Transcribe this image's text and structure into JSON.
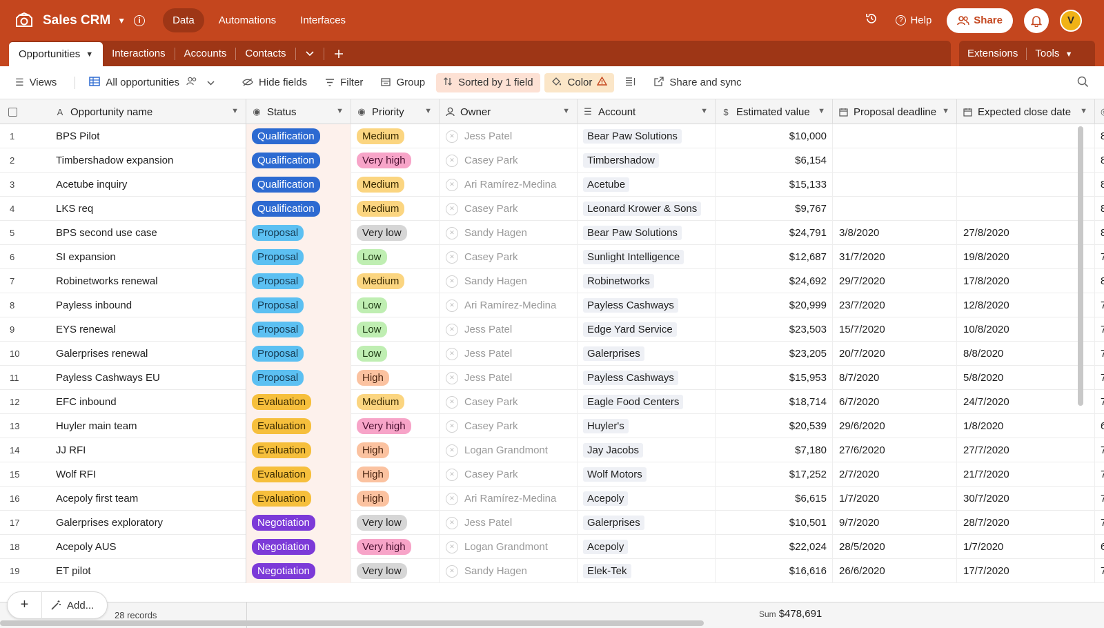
{
  "app": {
    "base_name": "Sales CRM",
    "nav": [
      "Data",
      "Automations",
      "Interfaces"
    ],
    "active_nav": 0,
    "help_label": "Help",
    "share_label": "Share",
    "avatar_initial": "V",
    "colors": {
      "brand": "#c4461e",
      "brand_dark": "#9e3616"
    }
  },
  "tabs": {
    "items": [
      "Opportunities",
      "Interactions",
      "Accounts",
      "Contacts"
    ],
    "right": [
      "Extensions",
      "Tools"
    ]
  },
  "toolbar": {
    "views": "Views",
    "view_name": "All opportunities",
    "hide_fields": "Hide fields",
    "filter": "Filter",
    "group": "Group",
    "sorted": "Sorted by 1 field",
    "color": "Color",
    "share_sync": "Share and sync"
  },
  "columns": [
    "Opportunity name",
    "Status",
    "Priority",
    "Owner",
    "Account",
    "Estimated value",
    "Proposal deadline",
    "Expected close date"
  ],
  "rows": [
    {
      "n": "1",
      "name": "BPS Pilot",
      "status": "Qualification",
      "priority": "Medium",
      "owner": "Jess Patel",
      "account": "Bear Paw Solutions",
      "value": "$10,000",
      "prop": "",
      "close": "",
      "tail": "8"
    },
    {
      "n": "2",
      "name": "Timbershadow expansion",
      "status": "Qualification",
      "priority": "Very high",
      "owner": "Casey Park",
      "account": "Timbershadow",
      "value": "$6,154",
      "prop": "",
      "close": "",
      "tail": "8"
    },
    {
      "n": "3",
      "name": "Acetube inquiry",
      "status": "Qualification",
      "priority": "Medium",
      "owner": "Ari Ramírez-Medina",
      "account": "Acetube",
      "value": "$15,133",
      "prop": "",
      "close": "",
      "tail": "8"
    },
    {
      "n": "4",
      "name": "LKS req",
      "status": "Qualification",
      "priority": "Medium",
      "owner": "Casey Park",
      "account": "Leonard Krower & Sons",
      "value": "$9,767",
      "prop": "",
      "close": "",
      "tail": "8"
    },
    {
      "n": "5",
      "name": "BPS second use case",
      "status": "Proposal",
      "priority": "Very low",
      "owner": "Sandy Hagen",
      "account": "Bear Paw Solutions",
      "value": "$24,791",
      "prop": "3/8/2020",
      "close": "27/8/2020",
      "tail": "8"
    },
    {
      "n": "6",
      "name": "SI expansion",
      "status": "Proposal",
      "priority": "Low",
      "owner": "Casey Park",
      "account": "Sunlight Intelligence",
      "value": "$12,687",
      "prop": "31/7/2020",
      "close": "19/8/2020",
      "tail": "7"
    },
    {
      "n": "7",
      "name": "Robinetworks renewal",
      "status": "Proposal",
      "priority": "Medium",
      "owner": "Sandy Hagen",
      "account": "Robinetworks",
      "value": "$24,692",
      "prop": "29/7/2020",
      "close": "17/8/2020",
      "tail": "8"
    },
    {
      "n": "8",
      "name": "Payless inbound",
      "status": "Proposal",
      "priority": "Low",
      "owner": "Ari Ramírez-Medina",
      "account": "Payless Cashways",
      "value": "$20,999",
      "prop": "23/7/2020",
      "close": "12/8/2020",
      "tail": "7"
    },
    {
      "n": "9",
      "name": "EYS renewal",
      "status": "Proposal",
      "priority": "Low",
      "owner": "Jess Patel",
      "account": "Edge Yard Service",
      "value": "$23,503",
      "prop": "15/7/2020",
      "close": "10/8/2020",
      "tail": "7"
    },
    {
      "n": "10",
      "name": "Galerprises renewal",
      "status": "Proposal",
      "priority": "Low",
      "owner": "Jess Patel",
      "account": "Galerprises",
      "value": "$23,205",
      "prop": "20/7/2020",
      "close": "8/8/2020",
      "tail": "7"
    },
    {
      "n": "11",
      "name": "Payless Cashways EU",
      "status": "Proposal",
      "priority": "High",
      "owner": "Jess Patel",
      "account": "Payless Cashways",
      "value": "$15,953",
      "prop": "8/7/2020",
      "close": "5/8/2020",
      "tail": "7"
    },
    {
      "n": "12",
      "name": "EFC inbound",
      "status": "Evaluation",
      "priority": "Medium",
      "owner": "Casey Park",
      "account": "Eagle Food Centers",
      "value": "$18,714",
      "prop": "6/7/2020",
      "close": "24/7/2020",
      "tail": "7"
    },
    {
      "n": "13",
      "name": "Huyler main team",
      "status": "Evaluation",
      "priority": "Very high",
      "owner": "Casey Park",
      "account": "Huyler's",
      "value": "$20,539",
      "prop": "29/6/2020",
      "close": "1/8/2020",
      "tail": "6"
    },
    {
      "n": "14",
      "name": "JJ RFI",
      "status": "Evaluation",
      "priority": "High",
      "owner": "Logan Grandmont",
      "account": "Jay Jacobs",
      "value": "$7,180",
      "prop": "27/6/2020",
      "close": "27/7/2020",
      "tail": "7"
    },
    {
      "n": "15",
      "name": "Wolf RFI",
      "status": "Evaluation",
      "priority": "High",
      "owner": "Casey Park",
      "account": "Wolf Motors",
      "value": "$17,252",
      "prop": "2/7/2020",
      "close": "21/7/2020",
      "tail": "7"
    },
    {
      "n": "16",
      "name": "Acepoly first team",
      "status": "Evaluation",
      "priority": "High",
      "owner": "Ari Ramírez-Medina",
      "account": "Acepoly",
      "value": "$6,615",
      "prop": "1/7/2020",
      "close": "30/7/2020",
      "tail": "7"
    },
    {
      "n": "17",
      "name": "Galerprises exploratory",
      "status": "Negotiation",
      "priority": "Very low",
      "owner": "Jess Patel",
      "account": "Galerprises",
      "value": "$10,501",
      "prop": "9/7/2020",
      "close": "28/7/2020",
      "tail": "7"
    },
    {
      "n": "18",
      "name": "Acepoly AUS",
      "status": "Negotiation",
      "priority": "Very high",
      "owner": "Logan Grandmont",
      "account": "Acepoly",
      "value": "$22,024",
      "prop": "28/5/2020",
      "close": "1/7/2020",
      "tail": "6"
    },
    {
      "n": "19",
      "name": "ET pilot",
      "status": "Negotiation",
      "priority": "Very low",
      "owner": "Sandy Hagen",
      "account": "Elek-Tek",
      "value": "$16,616",
      "prop": "26/6/2020",
      "close": "17/7/2020",
      "tail": "7"
    }
  ],
  "footer": {
    "add_label": "Add...",
    "records": "28 records",
    "sum_label": "Sum",
    "sum_value": "$478,691"
  }
}
